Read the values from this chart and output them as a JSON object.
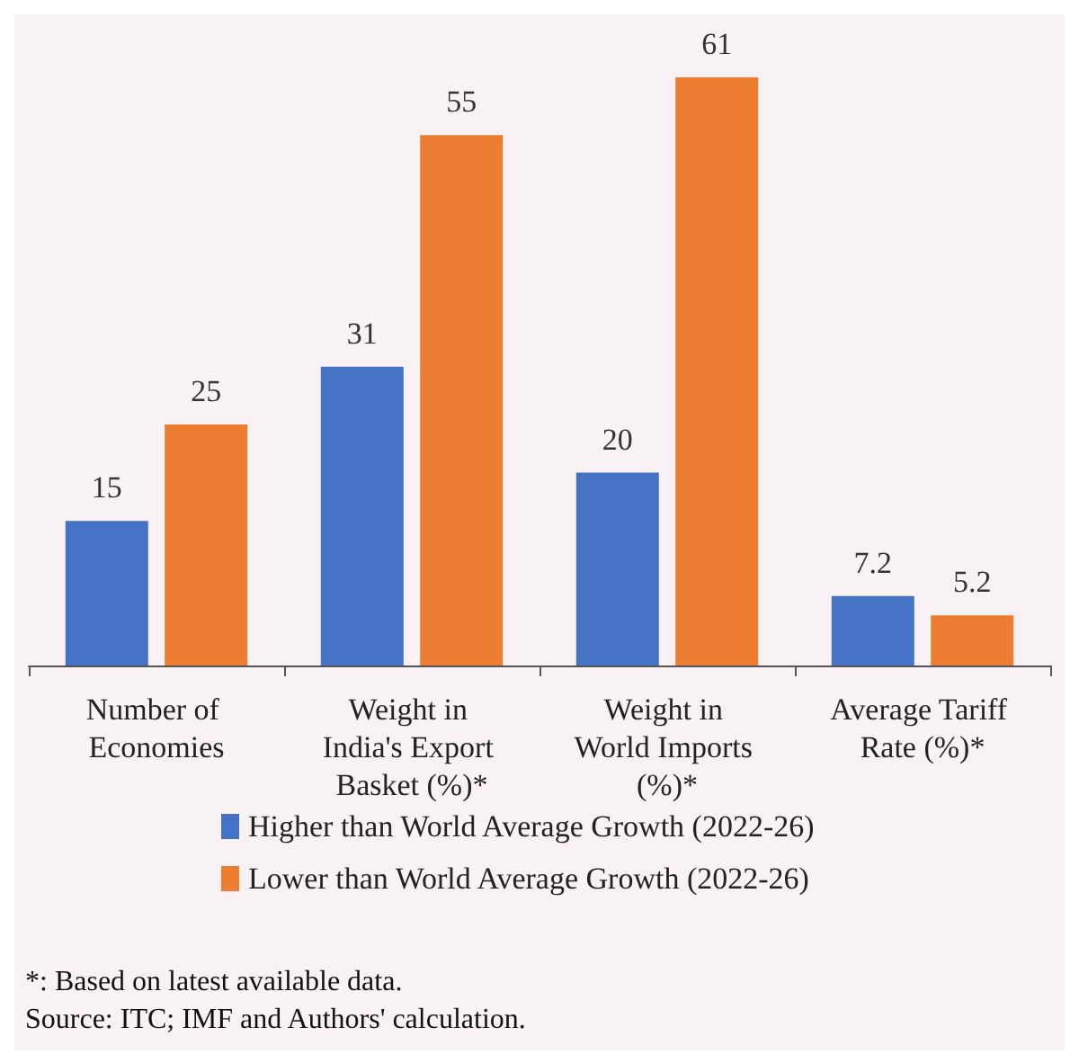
{
  "chart_data": {
    "type": "bar",
    "categories": [
      "Number of Economies",
      "Weight in India's Export Basket (%)*",
      "Weight in World Imports (%)*",
      "Average Tariff Rate (%)*"
    ],
    "series": [
      {
        "name": "Higher than World Average Growth (2022-26)",
        "color": "#4472c4",
        "values": [
          15,
          31,
          20,
          7.2
        ]
      },
      {
        "name": "Lower than World Average Growth (2022-26)",
        "color": "#ed7d31",
        "values": [
          25,
          55,
          61,
          5.2
        ]
      }
    ],
    "data_labels": true,
    "grid": false,
    "legend": "bottom",
    "annotations": [
      "*: Based on latest available data.",
      "Source: ITC; IMF and Authors' calculation."
    ]
  }
}
